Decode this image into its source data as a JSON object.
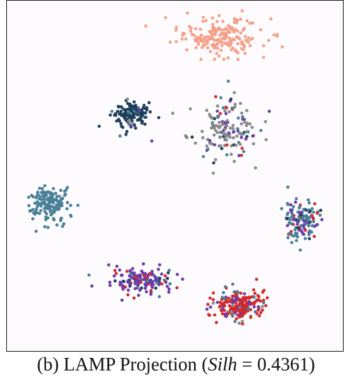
{
  "caption": {
    "prefix": "(b)  LAMP Projection (",
    "metric": "Silh",
    "suffix": " = 0.4361)"
  },
  "colors": {
    "salmon": "#f4a088",
    "navy": "#1e3f5a",
    "steel": "#4a8096",
    "gray": "#8a8a8a",
    "purple": "#6a3aaa",
    "red": "#d42a2a"
  },
  "chart_data": {
    "type": "scatter",
    "title": "",
    "xlabel": "",
    "ylabel": "",
    "axes_visible": false,
    "grid": false,
    "legend": "none",
    "xlim": [
      0,
      1
    ],
    "ylim": [
      0,
      1
    ],
    "clusters": [
      {
        "color": "salmon",
        "center": [
          0.64,
          0.91
        ],
        "spread": [
          0.12,
          0.05
        ],
        "count": 190,
        "mix": {
          "salmon": 1.0
        }
      },
      {
        "color": "navy",
        "center": [
          0.36,
          0.68
        ],
        "spread": [
          0.05,
          0.04
        ],
        "count": 130,
        "mix": {
          "navy": 0.78,
          "steel": 0.1,
          "gray": 0.06,
          "purple": 0.06
        }
      },
      {
        "color": "gray",
        "center": [
          0.65,
          0.64
        ],
        "spread": [
          0.1,
          0.08
        ],
        "count": 150,
        "mix": {
          "gray": 0.6,
          "steel": 0.15,
          "purple": 0.12,
          "red": 0.07,
          "navy": 0.06
        }
      },
      {
        "color": "steel",
        "center": [
          0.11,
          0.42
        ],
        "spread": [
          0.06,
          0.045
        ],
        "count": 160,
        "mix": {
          "steel": 1.0
        }
      },
      {
        "color": "steel",
        "center": [
          0.89,
          0.37
        ],
        "spread": [
          0.05,
          0.05
        ],
        "count": 140,
        "mix": {
          "steel": 0.6,
          "purple": 0.22,
          "red": 0.12,
          "navy": 0.06
        }
      },
      {
        "color": "purple",
        "center": [
          0.4,
          0.19
        ],
        "spread": [
          0.09,
          0.035
        ],
        "count": 150,
        "mix": {
          "purple": 0.62,
          "red": 0.18,
          "steel": 0.12,
          "navy": 0.08
        }
      },
      {
        "color": "red",
        "center": [
          0.7,
          0.12
        ],
        "spread": [
          0.07,
          0.04
        ],
        "count": 200,
        "mix": {
          "red": 0.68,
          "purple": 0.18,
          "steel": 0.1,
          "gray": 0.04
        }
      }
    ]
  }
}
